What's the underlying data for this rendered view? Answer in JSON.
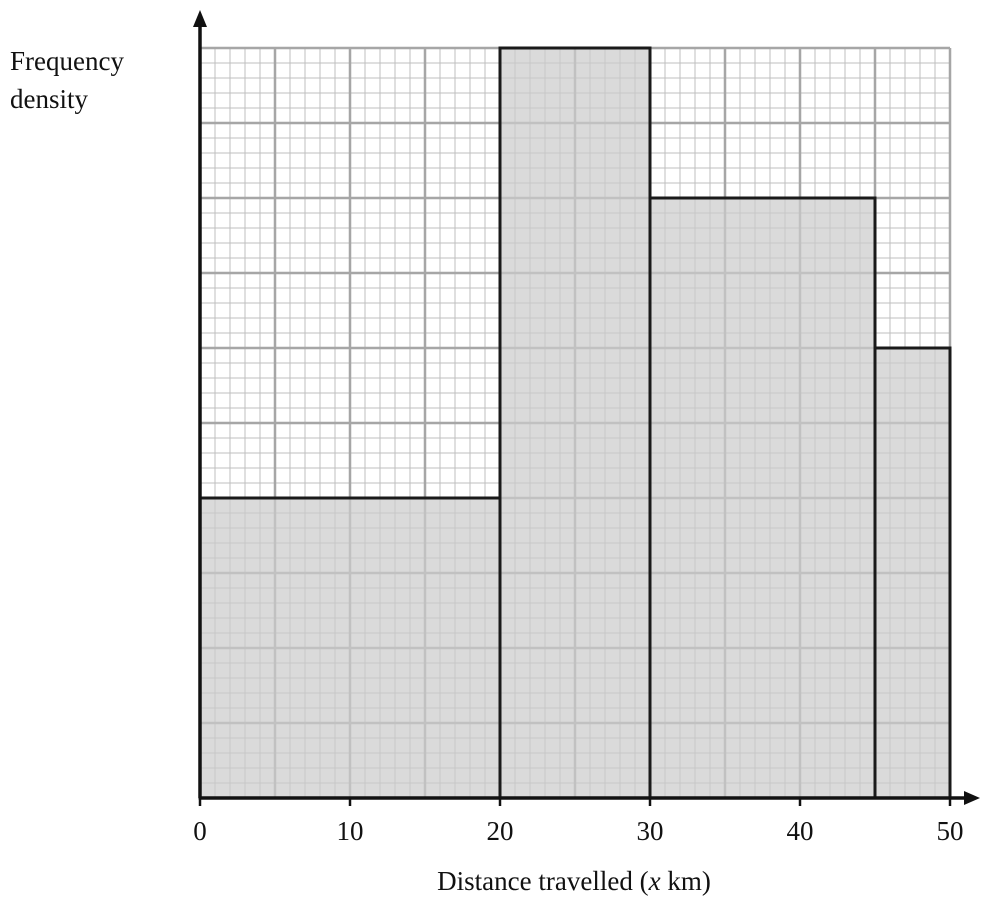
{
  "chart_data": {
    "type": "histogram",
    "title": "",
    "xlabel_parts": [
      "Distance travelled (",
      "x",
      " km)"
    ],
    "ylabel_lines": [
      "Frequency",
      "density"
    ],
    "xlim": [
      0,
      50
    ],
    "ylim": [
      0,
      10
    ],
    "x_ticks": [
      0,
      10,
      20,
      30,
      40,
      50
    ],
    "x_tick_labels": [
      "0",
      "10",
      "20",
      "30",
      "40",
      "50"
    ],
    "bins": [
      {
        "from": 0,
        "to": 20,
        "value": 4
      },
      {
        "from": 20,
        "to": 30,
        "value": 10
      },
      {
        "from": 30,
        "to": 45,
        "value": 8
      },
      {
        "from": 45,
        "to": 50,
        "value": 6
      }
    ],
    "grid": true,
    "y_tick_labels_shown": false,
    "colors": {
      "bar_fill": "#cccccc",
      "bar_stroke": "#1a1a1a",
      "grid_major": "#a6a6a6",
      "grid_minor": "#bfbfbf",
      "axis": "#111111"
    }
  }
}
